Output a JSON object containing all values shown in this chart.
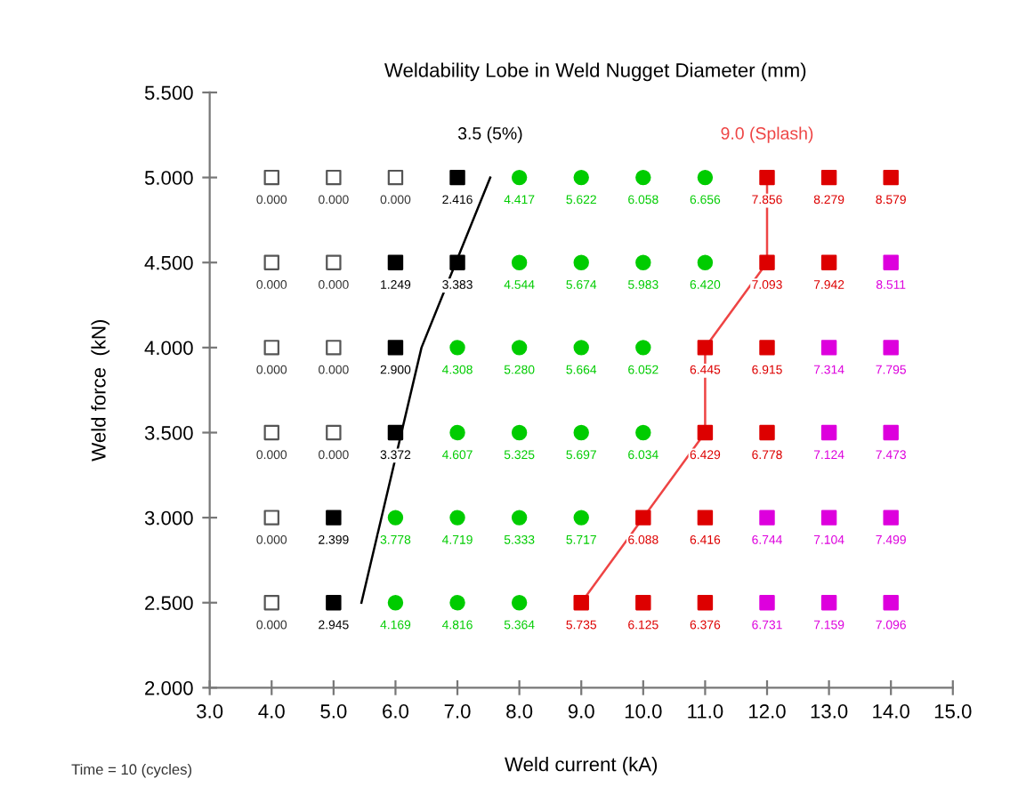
{
  "chart_data": {
    "type": "scatter",
    "title": "Weldability Lobe in Weld Nugget Diameter (mm)",
    "xlabel": "Weld current (kA)",
    "ylabel": "Weld force  (kN)",
    "xlim": [
      3.0,
      15.0
    ],
    "xticks": [
      {
        "value": 3,
        "label": "3.0"
      },
      {
        "value": 4,
        "label": "4.0"
      },
      {
        "value": 5,
        "label": "5.0"
      },
      {
        "value": 6,
        "label": "6.0"
      },
      {
        "value": 7,
        "label": "7.0"
      },
      {
        "value": 8,
        "label": "8.0"
      },
      {
        "value": 9,
        "label": "9.0"
      },
      {
        "value": 10,
        "label": "10.0"
      },
      {
        "value": 11,
        "label": "11.0"
      },
      {
        "value": 12,
        "label": "12.0"
      },
      {
        "value": 13,
        "label": "13.0"
      },
      {
        "value": 14,
        "label": "14.0"
      },
      {
        "value": 15,
        "label": "15.0"
      }
    ],
    "ylim": [
      2.0,
      5.5
    ],
    "yticks": [
      {
        "value": 2,
        "label": "2.000"
      },
      {
        "value": 2.5,
        "label": "2.500"
      },
      {
        "value": 3,
        "label": "3.000"
      },
      {
        "value": 3.5,
        "label": "3.500"
      },
      {
        "value": 4,
        "label": "4.000"
      },
      {
        "value": 4.5,
        "label": "4.500"
      },
      {
        "value": 5,
        "label": "5.000"
      },
      {
        "value": 5.5,
        "label": "5.500"
      }
    ],
    "grid": false,
    "legend": false,
    "series": [
      {
        "marker": "square",
        "color": "#ffffff",
        "x": [
          4,
          5,
          6,
          4,
          5,
          4,
          5,
          4,
          5,
          4,
          4
        ],
        "values": [
          5.0,
          5.0,
          5.0,
          4.5,
          4.5,
          4.0,
          4.0,
          3.5,
          3.5,
          3.0,
          2.5
        ]
      },
      {
        "marker": "square",
        "color": "#000000",
        "x": [
          7,
          6,
          7,
          6,
          6,
          5,
          5
        ],
        "values": [
          5.0,
          4.5,
          4.5,
          4.0,
          3.5,
          3.0,
          2.5
        ]
      },
      {
        "marker": "circle",
        "color": "#00cc00",
        "x": [
          8,
          9,
          10,
          11,
          8,
          9,
          10,
          11,
          7,
          8,
          9,
          10,
          7,
          8,
          9,
          10,
          6,
          7,
          8,
          9,
          6,
          7,
          8
        ],
        "values": [
          5.0,
          5.0,
          5.0,
          5.0,
          4.5,
          4.5,
          4.5,
          4.5,
          4.0,
          4.0,
          4.0,
          4.0,
          3.5,
          3.5,
          3.5,
          3.5,
          3.0,
          3.0,
          3.0,
          3.0,
          2.5,
          2.5,
          2.5
        ]
      },
      {
        "marker": "square",
        "color": "#dd0000",
        "x": [
          12,
          13,
          14,
          12,
          13,
          11,
          12,
          11,
          12,
          10,
          11,
          9,
          10,
          11
        ],
        "values": [
          5.0,
          5.0,
          5.0,
          4.5,
          4.5,
          4.0,
          4.0,
          3.5,
          3.5,
          3.0,
          3.0,
          2.5,
          2.5,
          2.5
        ]
      },
      {
        "marker": "square",
        "color": "#dd00dd",
        "x": [
          14,
          13,
          14,
          13,
          14,
          12,
          13,
          14,
          12,
          13,
          14
        ],
        "values": [
          4.5,
          4.0,
          4.0,
          3.5,
          3.5,
          3.0,
          3.0,
          3.0,
          2.5,
          2.5,
          2.5
        ]
      },
      {
        "type": "line",
        "name": "3.5 (5%)",
        "color": "#000000",
        "marker": "none",
        "line_style": "solid",
        "x": [
          5.45,
          6.42,
          7.53
        ],
        "values": [
          2.5,
          4.0,
          5.0
        ]
      },
      {
        "type": "line",
        "name": "9.0 (Splash)",
        "color": "#ee4444",
        "marker": "none",
        "line_style": "solid",
        "x": [
          9,
          11,
          11,
          12,
          12
        ],
        "values": [
          2.5,
          3.5,
          4.0,
          4.5,
          5.0
        ]
      }
    ],
    "annotations": [
      {
        "text": "0.000",
        "x": 4,
        "y": 5.0
      },
      {
        "text": "0.000",
        "x": 5,
        "y": 5.0
      },
      {
        "text": "0.000",
        "x": 6,
        "y": 5.0
      },
      {
        "text": "2.416",
        "x": 7,
        "y": 5.0
      },
      {
        "text": "4.417",
        "x": 8,
        "y": 5.0
      },
      {
        "text": "5.622",
        "x": 9,
        "y": 5.0
      },
      {
        "text": "6.058",
        "x": 10,
        "y": 5.0
      },
      {
        "text": "6.656",
        "x": 11,
        "y": 5.0
      },
      {
        "text": "7.856",
        "x": 12,
        "y": 5.0
      },
      {
        "text": "8.279",
        "x": 13,
        "y": 5.0
      },
      {
        "text": "8.579",
        "x": 14,
        "y": 5.0
      },
      {
        "text": "0.000",
        "x": 4,
        "y": 4.5
      },
      {
        "text": "0.000",
        "x": 5,
        "y": 4.5
      },
      {
        "text": "1.249",
        "x": 6,
        "y": 4.5
      },
      {
        "text": "3.383",
        "x": 7,
        "y": 4.5
      },
      {
        "text": "4.544",
        "x": 8,
        "y": 4.5
      },
      {
        "text": "5.674",
        "x": 9,
        "y": 4.5
      },
      {
        "text": "5.983",
        "x": 10,
        "y": 4.5
      },
      {
        "text": "6.420",
        "x": 11,
        "y": 4.5
      },
      {
        "text": "7.093",
        "x": 12,
        "y": 4.5
      },
      {
        "text": "7.942",
        "x": 13,
        "y": 4.5
      },
      {
        "text": "8.511",
        "x": 14,
        "y": 4.5
      },
      {
        "text": "0.000",
        "x": 4,
        "y": 4.0
      },
      {
        "text": "0.000",
        "x": 5,
        "y": 4.0
      },
      {
        "text": "2.900",
        "x": 6,
        "y": 4.0
      },
      {
        "text": "4.308",
        "x": 7,
        "y": 4.0
      },
      {
        "text": "5.280",
        "x": 8,
        "y": 4.0
      },
      {
        "text": "5.664",
        "x": 9,
        "y": 4.0
      },
      {
        "text": "6.052",
        "x": 10,
        "y": 4.0
      },
      {
        "text": "6.445",
        "x": 11,
        "y": 4.0
      },
      {
        "text": "6.915",
        "x": 12,
        "y": 4.0
      },
      {
        "text": "7.314",
        "x": 13,
        "y": 4.0
      },
      {
        "text": "7.795",
        "x": 14,
        "y": 4.0
      },
      {
        "text": "0.000",
        "x": 4,
        "y": 3.5
      },
      {
        "text": "0.000",
        "x": 5,
        "y": 3.5
      },
      {
        "text": "3.372",
        "x": 6,
        "y": 3.5
      },
      {
        "text": "4.607",
        "x": 7,
        "y": 3.5
      },
      {
        "text": "5.325",
        "x": 8,
        "y": 3.5
      },
      {
        "text": "5.697",
        "x": 9,
        "y": 3.5
      },
      {
        "text": "6.034",
        "x": 10,
        "y": 3.5
      },
      {
        "text": "6.429",
        "x": 11,
        "y": 3.5
      },
      {
        "text": "6.778",
        "x": 12,
        "y": 3.5
      },
      {
        "text": "7.124",
        "x": 13,
        "y": 3.5
      },
      {
        "text": "7.473",
        "x": 14,
        "y": 3.5
      },
      {
        "text": "0.000",
        "x": 4,
        "y": 3.0
      },
      {
        "text": "2.399",
        "x": 5,
        "y": 3.0
      },
      {
        "text": "3.778",
        "x": 6,
        "y": 3.0
      },
      {
        "text": "4.719",
        "x": 7,
        "y": 3.0
      },
      {
        "text": "5.333",
        "x": 8,
        "y": 3.0
      },
      {
        "text": "5.717",
        "x": 9,
        "y": 3.0
      },
      {
        "text": "6.088",
        "x": 10,
        "y": 3.0
      },
      {
        "text": "6.416",
        "x": 11,
        "y": 3.0
      },
      {
        "text": "6.744",
        "x": 12,
        "y": 3.0
      },
      {
        "text": "7.104",
        "x": 13,
        "y": 3.0
      },
      {
        "text": "7.499",
        "x": 14,
        "y": 3.0
      },
      {
        "text": "0.000",
        "x": 4,
        "y": 2.5
      },
      {
        "text": "2.945",
        "x": 5,
        "y": 2.5
      },
      {
        "text": "4.169",
        "x": 6,
        "y": 2.5
      },
      {
        "text": "4.816",
        "x": 7,
        "y": 2.5
      },
      {
        "text": "5.364",
        "x": 8,
        "y": 2.5
      },
      {
        "text": "5.735",
        "x": 9,
        "y": 2.5
      },
      {
        "text": "6.125",
        "x": 10,
        "y": 2.5
      },
      {
        "text": "6.376",
        "x": 11,
        "y": 2.5
      },
      {
        "text": "6.731",
        "x": 12,
        "y": 2.5
      },
      {
        "text": "7.159",
        "x": 13,
        "y": 2.5
      },
      {
        "text": "7.096",
        "x": 14,
        "y": 2.5
      },
      "Time = 10 (cycles)"
    ]
  }
}
